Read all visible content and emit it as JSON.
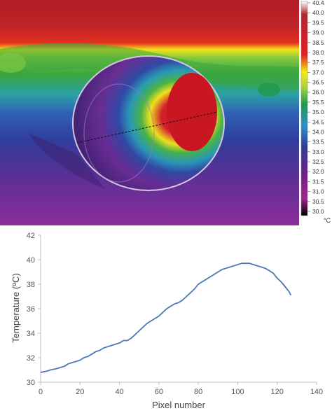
{
  "thermal_image": {
    "colorbar": {
      "min": 30.0,
      "max": 40.4,
      "unit": "°C",
      "tick_labels": [
        "40.4",
        "40.0",
        "39.5",
        "39.0",
        "38.5",
        "38.0",
        "37.5",
        "37.0",
        "36.5",
        "36.0",
        "35.5",
        "35.0",
        "34.5",
        "34.0",
        "33.5",
        "33.0",
        "32.5",
        "32.0",
        "31.5",
        "31.0",
        "30.5",
        "30.0"
      ],
      "gradient": [
        "#ffffff",
        "#b3272c",
        "#b0102a",
        "#e41f26",
        "#f5ea14",
        "#a8d53e",
        "#1d9b49",
        "#2d8fce",
        "#2f3b96",
        "#6b1f8a",
        "#a3238b",
        "#000000"
      ]
    },
    "colors": {
      "background_hot": "#b01d24",
      "band_green": "#3aa53f",
      "band_yellow": "#e9e41d",
      "band_blue": "#2f3d9c",
      "region_purple": "#7a2d96",
      "sphere_hot": "#c81623"
    }
  },
  "chart_data": {
    "type": "line",
    "xlabel": "Pixel number",
    "ylabel": "Temperature  (ºC)",
    "xlim": [
      0,
      140
    ],
    "ylim": [
      30,
      42
    ],
    "xticks": [
      0,
      20,
      40,
      60,
      80,
      100,
      120,
      140
    ],
    "yticks": [
      30,
      32,
      34,
      36,
      38,
      40,
      42
    ],
    "grid": false,
    "line_color": "#4a76b8",
    "series": [
      {
        "x": [
          0,
          3,
          5,
          8,
          10,
          12,
          14,
          16,
          18,
          20,
          22,
          24,
          26,
          28,
          30,
          32,
          34,
          36,
          38,
          40,
          42,
          44,
          46,
          48,
          50,
          52,
          54,
          56,
          58,
          60,
          62,
          64,
          66,
          68,
          70,
          72,
          74,
          76,
          78,
          80,
          82,
          84,
          86,
          88,
          90,
          92,
          94,
          96,
          98,
          100,
          102,
          104,
          106,
          108,
          110,
          112,
          114,
          116,
          118,
          120,
          122,
          124,
          126,
          127
        ],
        "y": [
          30.8,
          30.9,
          31.0,
          31.1,
          31.2,
          31.3,
          31.5,
          31.6,
          31.7,
          31.8,
          32.0,
          32.1,
          32.3,
          32.5,
          32.6,
          32.8,
          32.9,
          33.0,
          33.1,
          33.2,
          33.4,
          33.4,
          33.6,
          33.9,
          34.2,
          34.5,
          34.8,
          35.0,
          35.2,
          35.4,
          35.7,
          36.0,
          36.2,
          36.4,
          36.5,
          36.7,
          37.0,
          37.3,
          37.6,
          38.0,
          38.2,
          38.4,
          38.6,
          38.8,
          39.0,
          39.2,
          39.3,
          39.4,
          39.5,
          39.6,
          39.7,
          39.7,
          39.7,
          39.6,
          39.5,
          39.4,
          39.3,
          39.1,
          38.9,
          38.5,
          38.2,
          37.8,
          37.4,
          37.1
        ]
      }
    ]
  }
}
